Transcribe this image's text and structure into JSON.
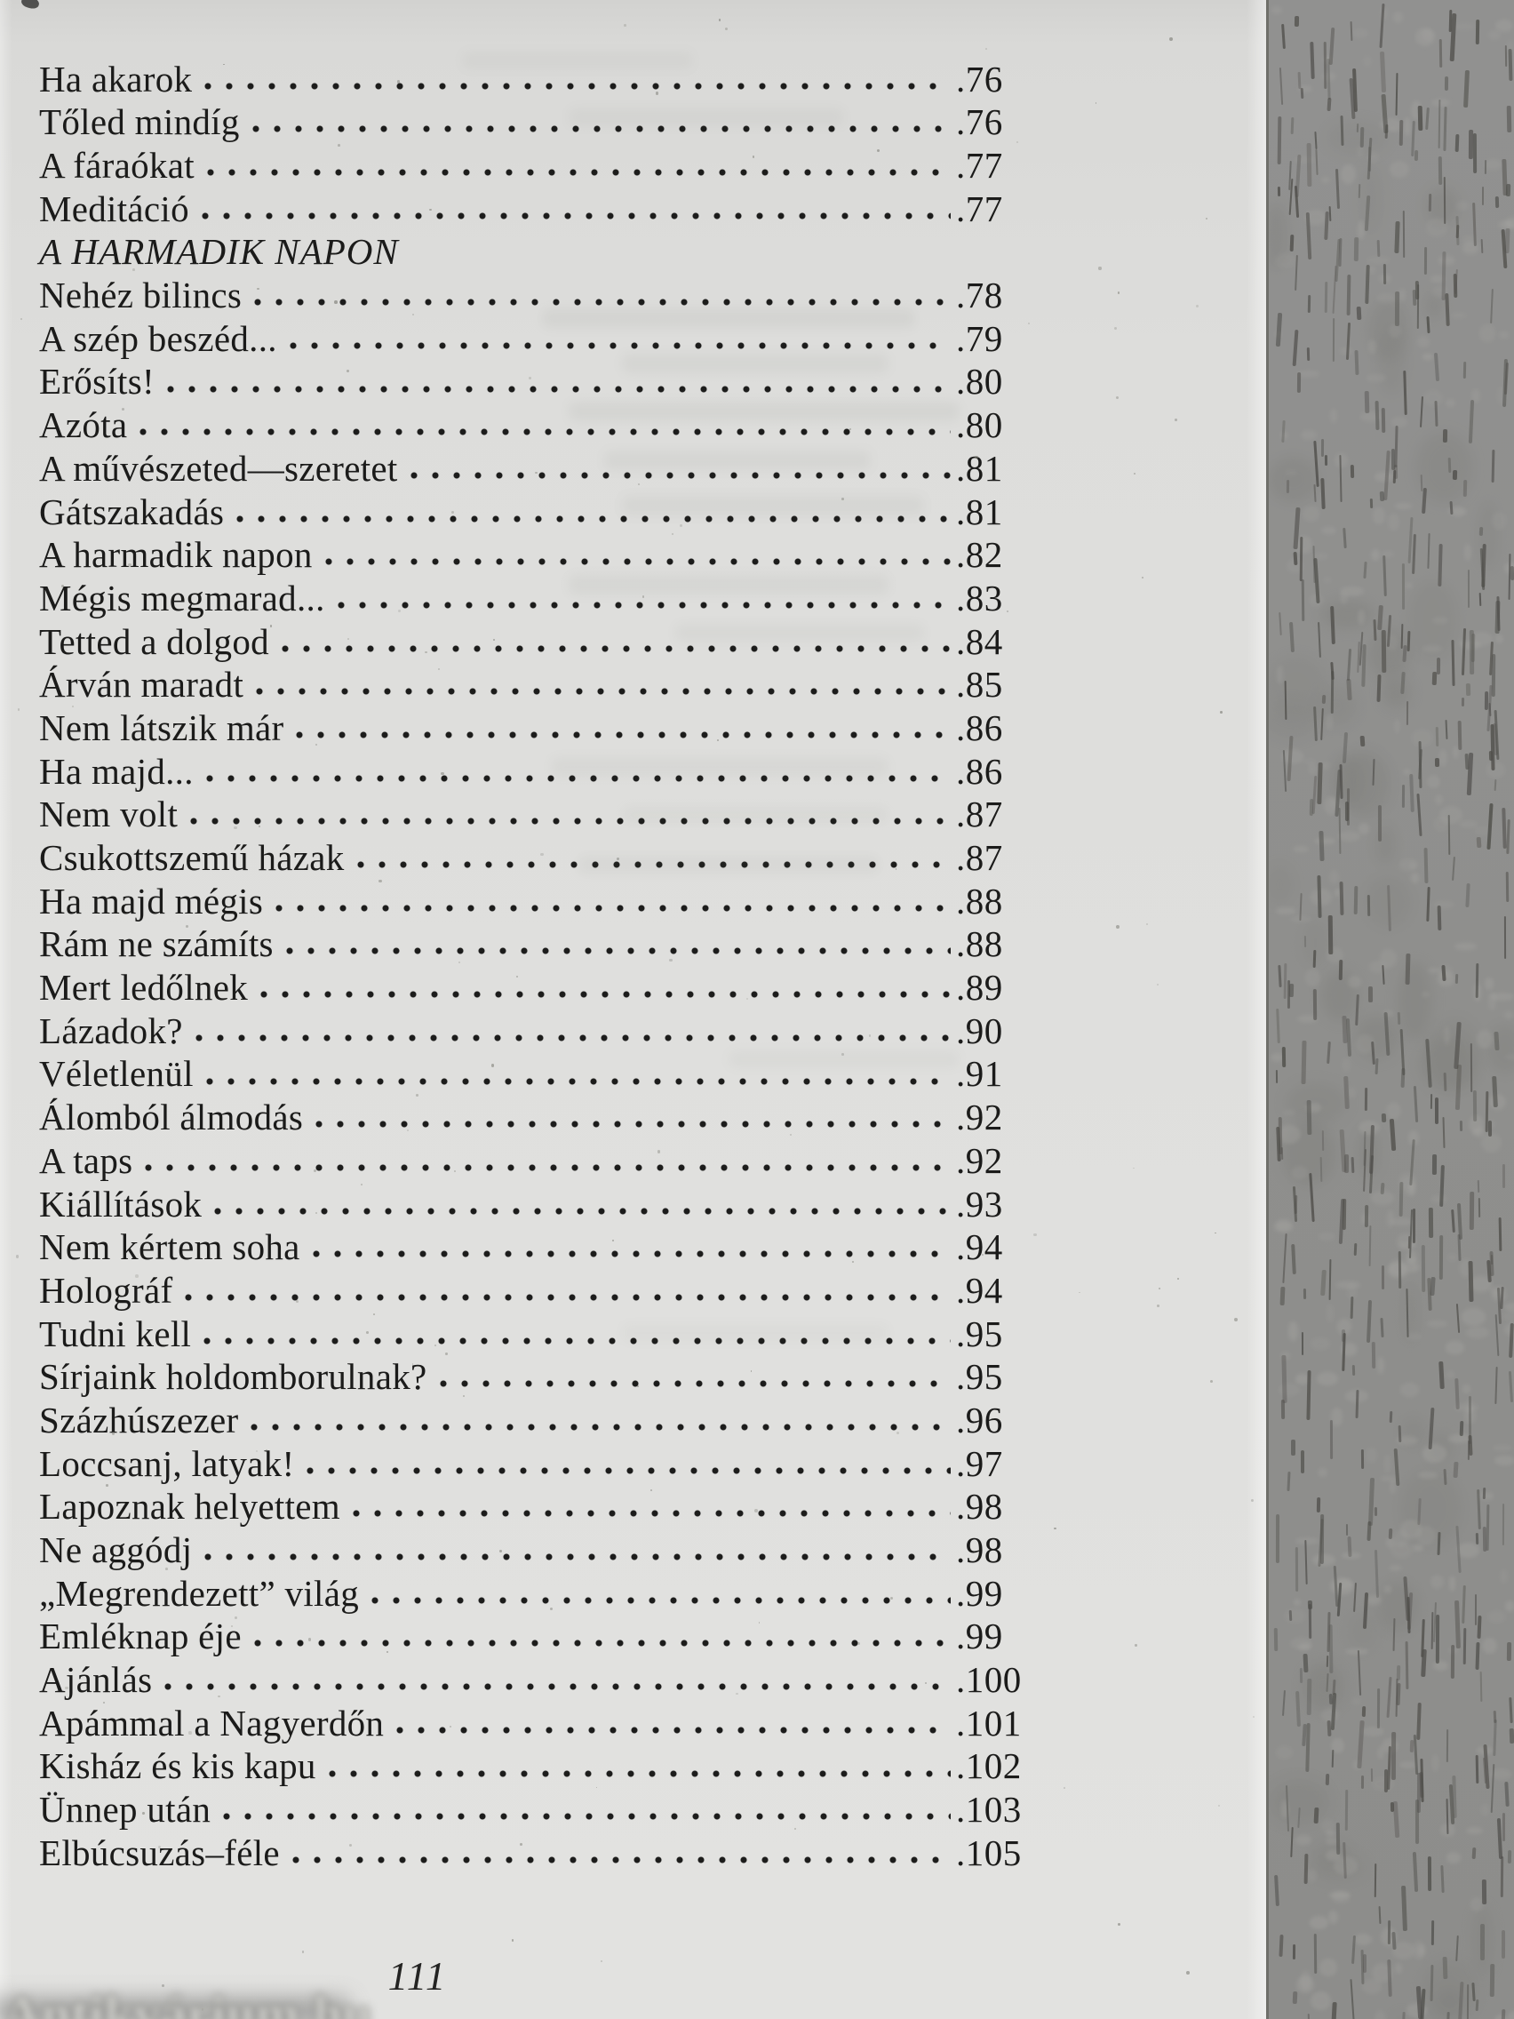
{
  "page": {
    "folio": "111",
    "watermark": "Antikvárium.hu"
  },
  "colors": {
    "paper": "#dedddb",
    "ink": "#1b1b1a",
    "edge_band": "#8f8f8d"
  },
  "toc": {
    "entries": [
      {
        "title": "Ha akarok",
        "page": ".76"
      },
      {
        "title": "Tőled mindíg",
        "page": ".76"
      },
      {
        "title": "A fáraókat",
        "page": ".77"
      },
      {
        "title": "Meditáció",
        "page": ".77"
      },
      {
        "title": "A HARMADIK NAPON",
        "section": true
      },
      {
        "title": "Nehéz bilincs",
        "page": ".78"
      },
      {
        "title": "A szép beszéd...",
        "page": ".79"
      },
      {
        "title": "Erősíts!",
        "page": ".80"
      },
      {
        "title": "Azóta",
        "page": ".80"
      },
      {
        "title": "A művészeted—szeretet",
        "page": ".81"
      },
      {
        "title": "Gátszakadás",
        "page": ".81"
      },
      {
        "title": "A harmadik napon",
        "page": ".82"
      },
      {
        "title": "Mégis megmarad...",
        "page": ".83"
      },
      {
        "title": "Tetted a dolgod",
        "page": ".84"
      },
      {
        "title": "Árván maradt",
        "page": ".85"
      },
      {
        "title": "Nem látszik már",
        "page": ".86"
      },
      {
        "title": "Ha majd...",
        "page": ".86"
      },
      {
        "title": "Nem volt",
        "page": ".87"
      },
      {
        "title": "Csukottszemű házak",
        "page": ".87"
      },
      {
        "title": "Ha majd mégis",
        "page": ".88"
      },
      {
        "title": "Rám ne számíts",
        "page": ".88"
      },
      {
        "title": "Mert ledőlnek",
        "page": ".89"
      },
      {
        "title": "Lázadok?",
        "page": ".90"
      },
      {
        "title": "Véletlenül",
        "page": ".91"
      },
      {
        "title": "Álomból álmodás",
        "page": ".92"
      },
      {
        "title": "A taps",
        "page": ".92"
      },
      {
        "title": "Kiállítások",
        "page": ".93"
      },
      {
        "title": "Nem kértem soha",
        "page": ".94"
      },
      {
        "title": "Holográf",
        "page": ".94"
      },
      {
        "title": "Tudni kell",
        "page": ".95"
      },
      {
        "title": "Sírjaink holdomborulnak?",
        "page": ".95"
      },
      {
        "title": "Százhúszezer",
        "page": ".96"
      },
      {
        "title": "Loccsanj, latyak!",
        "page": ".97"
      },
      {
        "title": "Lapoznak helyettem",
        "page": ".98"
      },
      {
        "title": "Ne aggódj",
        "page": ".98"
      },
      {
        "title": "„Megrendezett” világ",
        "page": ".99"
      },
      {
        "title": "Emléknap éje",
        "page": ".99"
      },
      {
        "title": "Ajánlás",
        "page": ".100"
      },
      {
        "title": "Apámmal a Nagyerdőn",
        "page": ".101"
      },
      {
        "title": "Kisház és kis kapu",
        "page": ".102"
      },
      {
        "title": "Ünnep után",
        "page": ".103"
      },
      {
        "title": "Elbúcsuzás–féle",
        "page": ".105"
      }
    ]
  }
}
